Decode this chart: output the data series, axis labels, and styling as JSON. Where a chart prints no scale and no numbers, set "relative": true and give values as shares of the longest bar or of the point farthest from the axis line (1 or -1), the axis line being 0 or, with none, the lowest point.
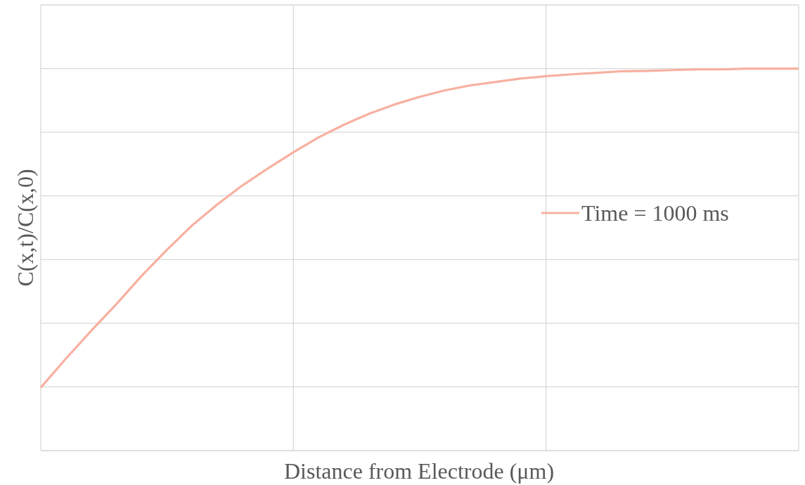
{
  "chart_data": {
    "type": "line",
    "xlabel": "Distance from Electrode (μm)",
    "ylabel": "C(x,t)/C(x,0)",
    "relative": true,
    "grid": true,
    "legend": "right",
    "marker": "none",
    "line_style": "solid",
    "categories": [
      null,
      null,
      null,
      null,
      null,
      null,
      null,
      null,
      null,
      null,
      null,
      null,
      null,
      null,
      null,
      null,
      null,
      null,
      null,
      null,
      null,
      null,
      null,
      null,
      null,
      null,
      null,
      null,
      null,
      null,
      null
    ],
    "series": [
      {
        "name": "Time = 1000 ms",
        "color": "#f8b0a0",
        "values": [
          0.165,
          0.241,
          0.314,
          0.384,
          0.458,
          0.526,
          0.59,
          0.645,
          0.695,
          0.739,
          0.781,
          0.82,
          0.853,
          0.882,
          0.906,
          0.926,
          0.943,
          0.956,
          0.965,
          0.974,
          0.98,
          0.985,
          0.989,
          0.993,
          0.994,
          0.996,
          0.998,
          0.998,
          1,
          1,
          1
        ]
      }
    ]
  }
}
